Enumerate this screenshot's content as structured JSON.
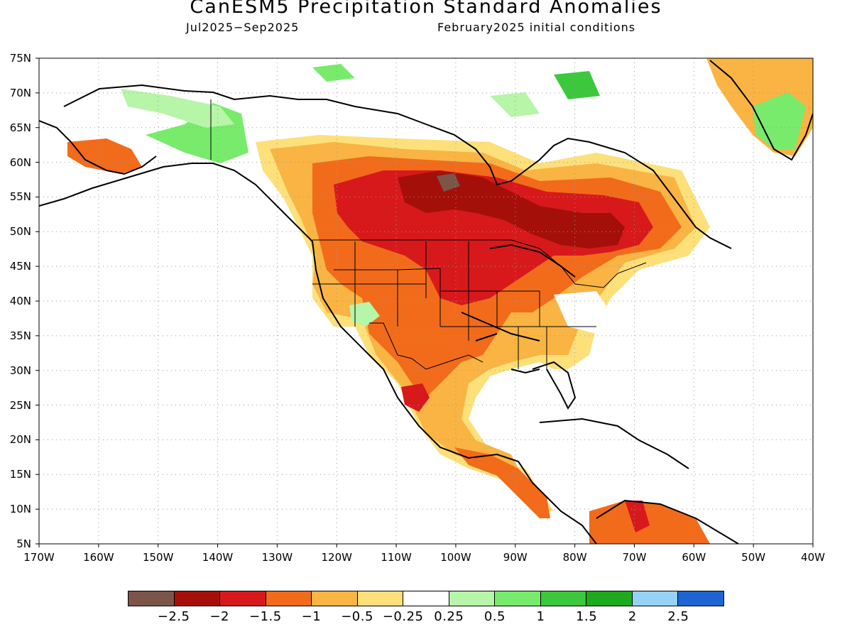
{
  "title": "CanESM5 Precipitation Standard Anomalies",
  "subtitle_left": "Jul2025−Sep2025",
  "subtitle_right": "February2025 initial conditions",
  "lat_labels": [
    "75N",
    "70N",
    "65N",
    "60N",
    "55N",
    "50N",
    "45N",
    "40N",
    "35N",
    "30N",
    "25N",
    "20N",
    "15N",
    "10N",
    "5N"
  ],
  "lon_labels": [
    "170W",
    "160W",
    "150W",
    "140W",
    "130W",
    "120W",
    "110W",
    "100W",
    "90W",
    "80W",
    "70W",
    "60W",
    "50W",
    "40W"
  ],
  "legend": {
    "colors": [
      "#7a5548",
      "#a50f0a",
      "#d7191c",
      "#f26b1a",
      "#f9b443",
      "#fde07a",
      "#ffffff",
      "#b7f5a8",
      "#78eb6c",
      "#3cc83c",
      "#1eaa1e",
      "#96d2f5",
      "#1e64d2"
    ],
    "labels": [
      "−2.5",
      "−2",
      "−1.5",
      "−1",
      "−0.5",
      "−0.25",
      "0.25",
      "0.5",
      "1",
      "1.5",
      "2",
      "2.5"
    ]
  }
}
